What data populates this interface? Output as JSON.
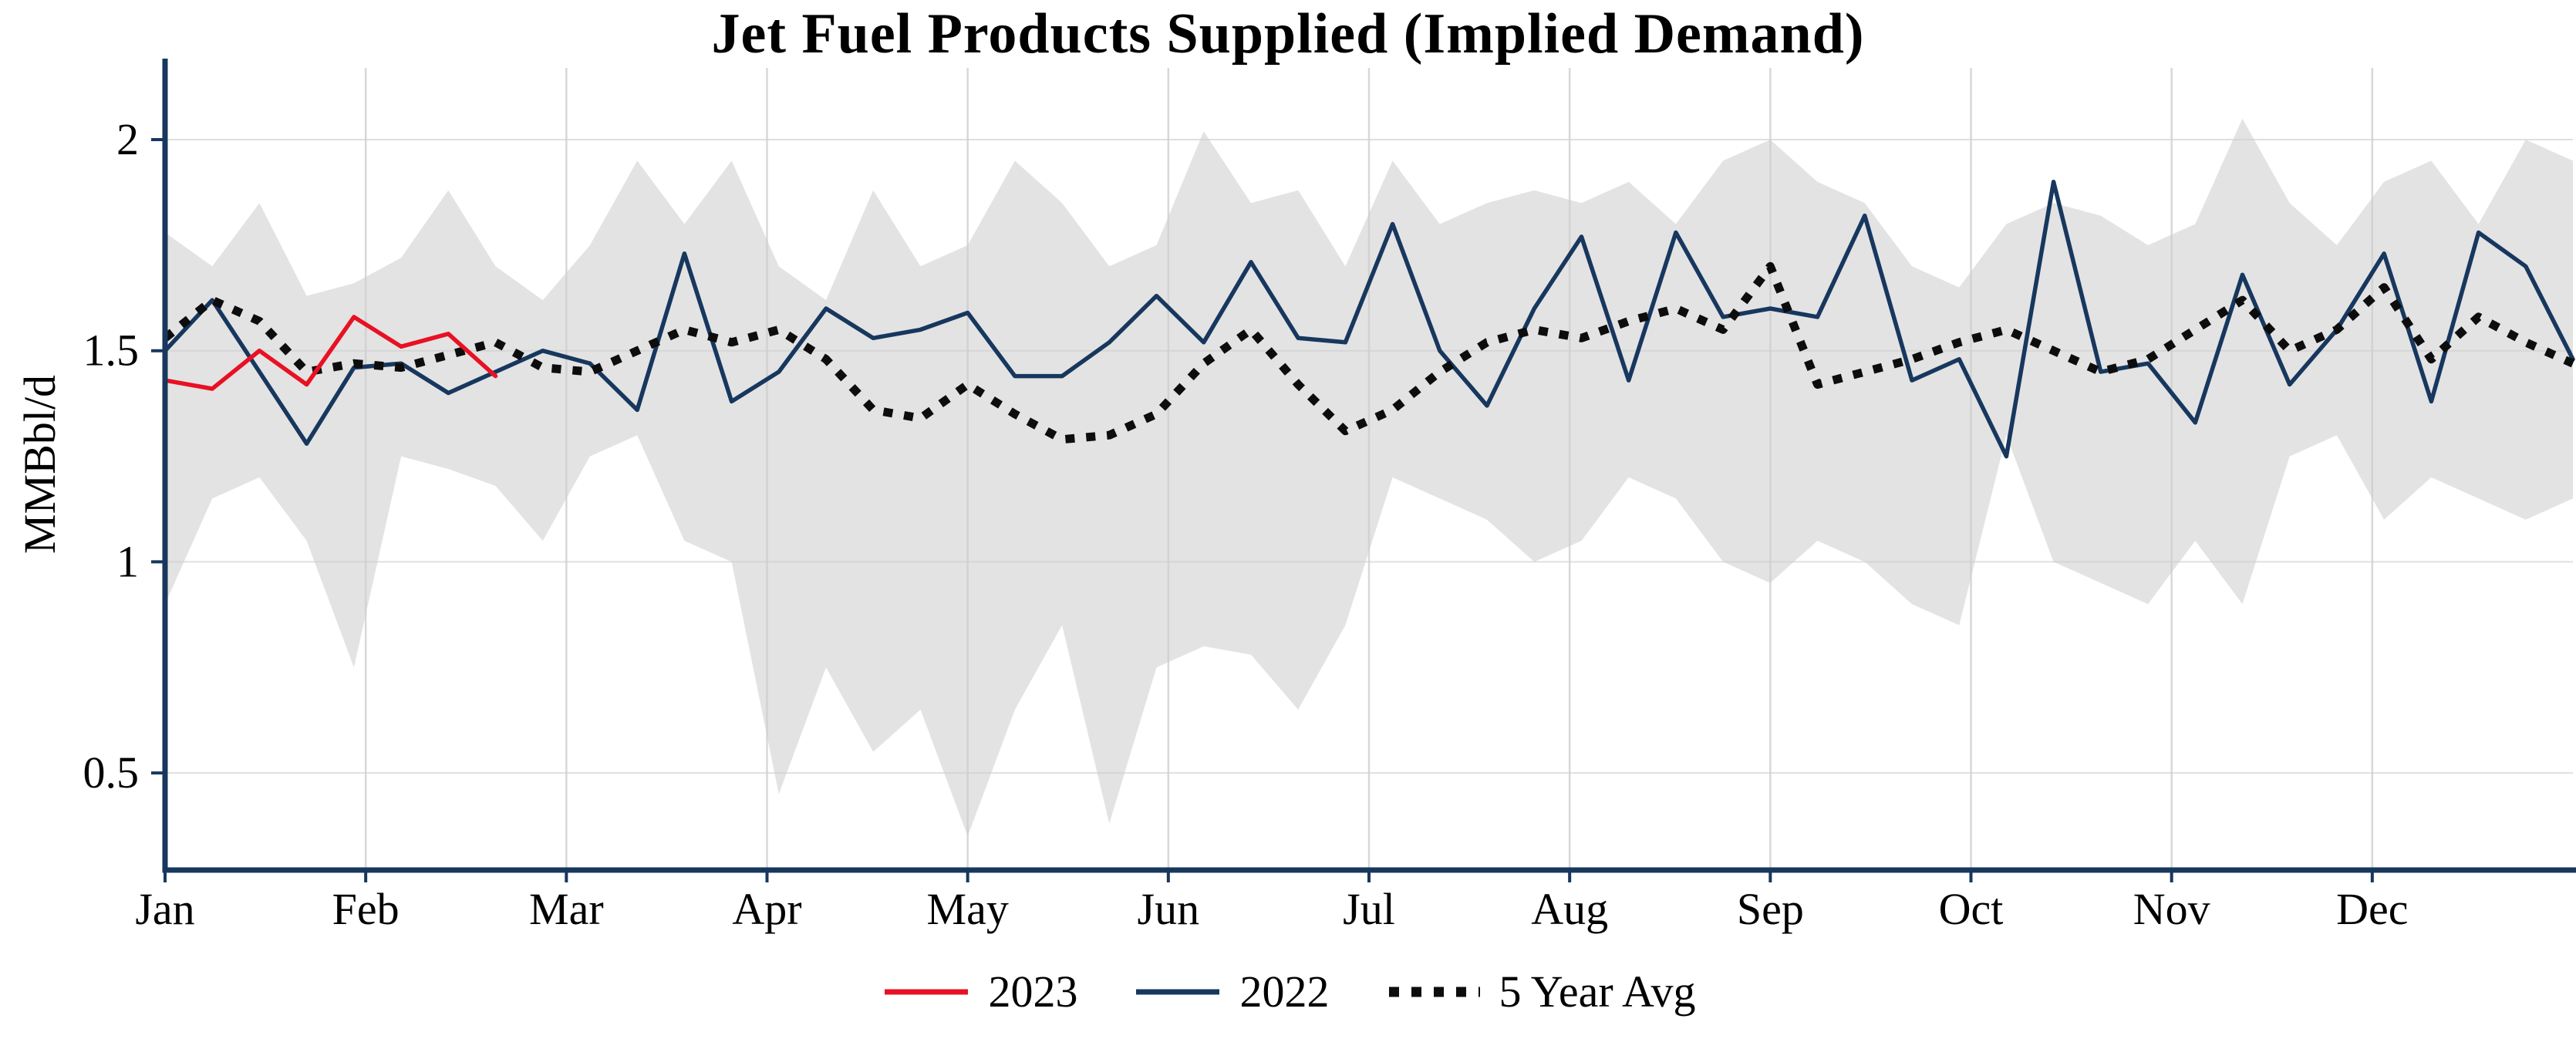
{
  "chart_data": {
    "type": "line",
    "title": "Jet Fuel Products Supplied (Implied Demand)",
    "ylabel": "MMBbl/d",
    "x_tick_labels": [
      "Jan",
      "Feb",
      "Mar",
      "Apr",
      "May",
      "Jun",
      "Jul",
      "Aug",
      "Sep",
      "Oct",
      "Nov",
      "Dec"
    ],
    "y_ticks": [
      0.5,
      1,
      1.5,
      2
    ],
    "y_tick_labels": [
      "0.5",
      "1",
      "1.5",
      "2"
    ],
    "ylim": [
      0.27,
      2.17
    ],
    "weeks": 52,
    "grid": true,
    "legend_position": "bottom",
    "axis_color": "#17375e",
    "grid_color": "#cfcfcf",
    "series": [
      {
        "name": "2023",
        "color": "#e81123",
        "style": "solid",
        "values": [
          1.43,
          1.41,
          1.5,
          1.42,
          1.58,
          1.51,
          1.54,
          1.44
        ]
      },
      {
        "name": "2022",
        "color": "#17375e",
        "style": "solid",
        "values": [
          1.5,
          1.62,
          1.45,
          1.28,
          1.46,
          1.47,
          1.4,
          1.45,
          1.5,
          1.47,
          1.36,
          1.73,
          1.38,
          1.45,
          1.6,
          1.53,
          1.55,
          1.59,
          1.44,
          1.44,
          1.52,
          1.63,
          1.52,
          1.71,
          1.53,
          1.52,
          1.8,
          1.5,
          1.37,
          1.6,
          1.77,
          1.43,
          1.78,
          1.58,
          1.6,
          1.58,
          1.82,
          1.43,
          1.48,
          1.25,
          1.9,
          1.45,
          1.47,
          1.33,
          1.68,
          1.42,
          1.55,
          1.73,
          1.38,
          1.78,
          1.7,
          1.48
        ]
      },
      {
        "name": "5 Year Avg",
        "color": "#0d0d0d",
        "style": "dotted",
        "values": [
          1.53,
          1.62,
          1.57,
          1.45,
          1.47,
          1.46,
          1.49,
          1.52,
          1.46,
          1.45,
          1.5,
          1.55,
          1.52,
          1.55,
          1.48,
          1.36,
          1.34,
          1.42,
          1.35,
          1.29,
          1.3,
          1.35,
          1.47,
          1.55,
          1.42,
          1.31,
          1.36,
          1.45,
          1.52,
          1.55,
          1.53,
          1.57,
          1.6,
          1.55,
          1.7,
          1.42,
          1.45,
          1.48,
          1.52,
          1.55,
          1.5,
          1.45,
          1.48,
          1.55,
          1.62,
          1.5,
          1.55,
          1.65,
          1.48,
          1.58,
          1.52,
          1.47
        ]
      }
    ],
    "band": {
      "color": "#e3e3e3",
      "upper": [
        1.78,
        1.7,
        1.85,
        1.63,
        1.66,
        1.72,
        1.88,
        1.7,
        1.62,
        1.75,
        1.95,
        1.8,
        1.95,
        1.7,
        1.62,
        1.88,
        1.7,
        1.75,
        1.95,
        1.85,
        1.7,
        1.75,
        2.02,
        1.85,
        1.88,
        1.7,
        1.95,
        1.8,
        1.85,
        1.88,
        1.85,
        1.9,
        1.8,
        1.95,
        2.0,
        1.9,
        1.85,
        1.7,
        1.65,
        1.8,
        1.85,
        1.82,
        1.75,
        1.8,
        2.05,
        1.85,
        1.75,
        1.9,
        1.95,
        1.8,
        2.0,
        1.95
      ],
      "lower": [
        0.9,
        1.15,
        1.2,
        1.05,
        0.75,
        1.25,
        1.22,
        1.18,
        1.05,
        1.25,
        1.3,
        1.05,
        1.0,
        0.45,
        0.75,
        0.55,
        0.65,
        0.35,
        0.65,
        0.85,
        0.38,
        0.75,
        0.8,
        0.78,
        0.65,
        0.85,
        1.2,
        1.15,
        1.1,
        1.0,
        1.05,
        1.2,
        1.15,
        1.0,
        0.95,
        1.05,
        1.0,
        0.9,
        0.85,
        1.3,
        1.0,
        0.95,
        0.9,
        1.05,
        0.9,
        1.25,
        1.3,
        1.1,
        1.2,
        1.15,
        1.1,
        1.15
      ]
    }
  }
}
